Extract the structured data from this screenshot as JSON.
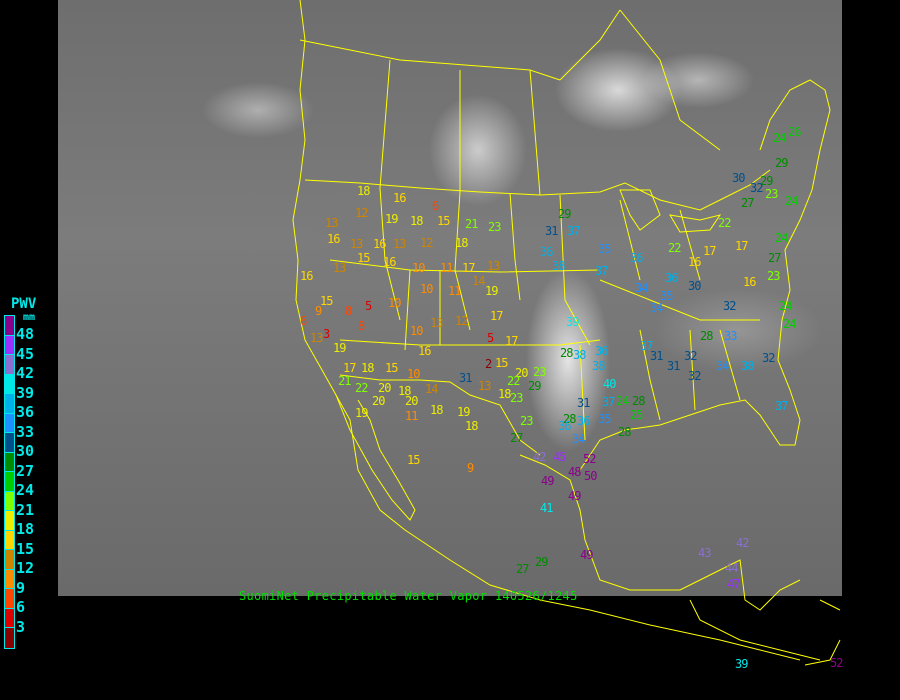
{
  "caption": "SuomiNet Precipitable Water Vapor 140526/1245",
  "legend": {
    "title": "PWV",
    "unit": "mm",
    "labels": [
      "48",
      "45",
      "42",
      "39",
      "36",
      "33",
      "30",
      "27",
      "24",
      "21",
      "18",
      "15",
      "12",
      "9",
      "6",
      "3"
    ],
    "colors": [
      "#8b008b",
      "#9b30ff",
      "#8a70d0",
      "#00e8e8",
      "#00b0e8",
      "#1e90ff",
      "#00508c",
      "#008b00",
      "#00cd00",
      "#7fff00",
      "#eeee00",
      "#ffd700",
      "#cd8500",
      "#ff8c00",
      "#ff4500",
      "#dd0000",
      "#8b0000"
    ]
  },
  "border_color": "#ffff00",
  "stations": [
    "18",
    "16",
    "6",
    "21",
    "23",
    "13",
    "12",
    "19",
    "18",
    "15",
    "16",
    "13",
    "16",
    "13",
    "12",
    "18",
    "13",
    "16",
    "13",
    "15",
    "16",
    "10",
    "11",
    "17",
    "14",
    "10",
    "11",
    "19",
    "15",
    "9",
    "8",
    "5",
    "10",
    "6",
    "8",
    "10",
    "13",
    "12",
    "17",
    "13",
    "3",
    "19",
    "16",
    "5",
    "17",
    "17",
    "18",
    "15",
    "10",
    "31",
    "2",
    "21",
    "22",
    "20",
    "18",
    "14",
    "13",
    "18",
    "15",
    "20",
    "23",
    "29",
    "23",
    "20",
    "20",
    "18",
    "19",
    "11",
    "19",
    "18",
    "15",
    "9",
    "28",
    "34",
    "36",
    "42",
    "45",
    "49",
    "48",
    "52",
    "50",
    "49",
    "41",
    "27",
    "29",
    "49",
    "23",
    "29",
    "31",
    "37",
    "36",
    "38",
    "39",
    "28",
    "38",
    "36",
    "38",
    "40",
    "37",
    "31",
    "36",
    "35",
    "24",
    "28",
    "25",
    "28",
    "31",
    "32",
    "32",
    "34",
    "38",
    "37",
    "32",
    "37",
    "31",
    "35",
    "37",
    "36",
    "22",
    "16",
    "17",
    "17",
    "16",
    "23",
    "27",
    "24",
    "24",
    "24",
    "22",
    "27",
    "23",
    "29",
    "30",
    "32",
    "24",
    "26",
    "29",
    "24",
    "35",
    "34",
    "36",
    "34",
    "30",
    "32",
    "33",
    "28",
    "27",
    "22",
    "42",
    "43",
    "44",
    "47",
    "39",
    "52"
  ]
}
